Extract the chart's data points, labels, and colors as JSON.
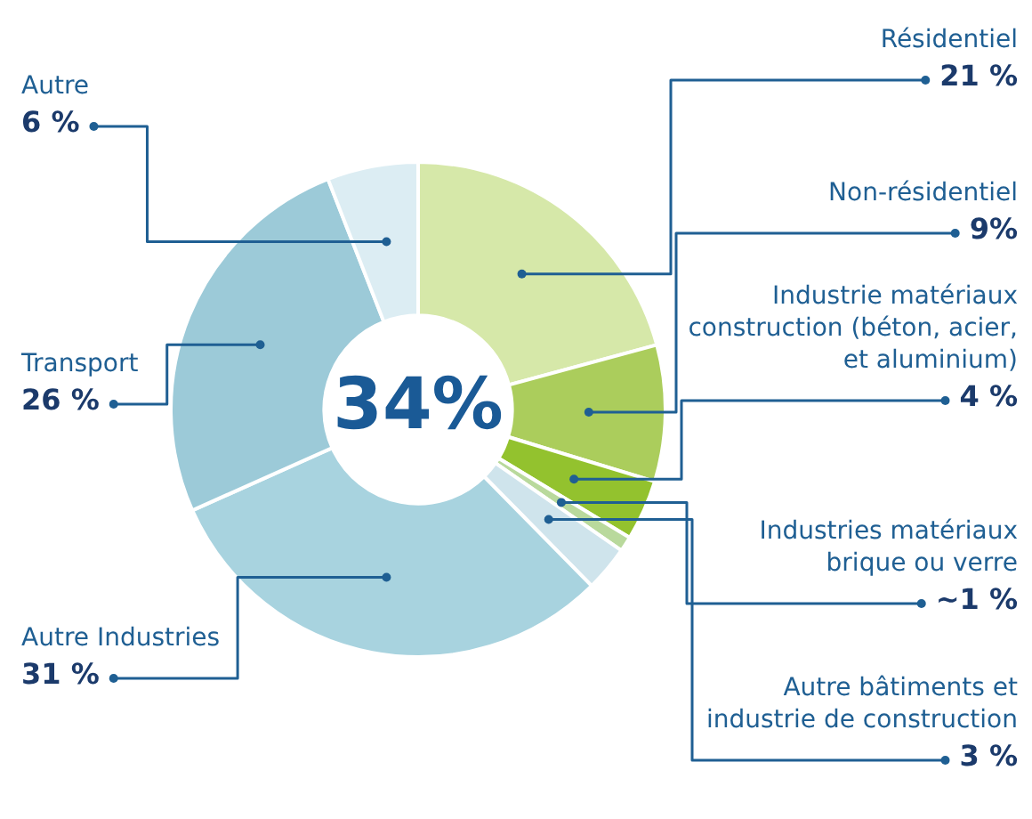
{
  "chart_data": {
    "type": "donut",
    "categories": [
      "Résidentiel",
      "Non-résidentiel",
      "Industrie matériaux construction (béton, acier, et aluminium)",
      "Industries matériaux brique ou verre",
      "Autre bâtiments et industrie de construction",
      "Autre Industries",
      "Transport",
      "Autre"
    ],
    "values": [
      21,
      9,
      4,
      1,
      3,
      31,
      26,
      6
    ],
    "value_labels": [
      "21 %",
      "9%",
      "4 %",
      "~1 %",
      "3 %",
      "31 %",
      "26 %",
      "6 %"
    ],
    "colors": [
      "#d6e8a9",
      "#abcd5c",
      "#93c22e",
      "#b9d99c",
      "#cfe4ec",
      "#a8d3df",
      "#9ccad8",
      "#dcedf3"
    ],
    "annotations": [
      "34%"
    ],
    "legend": false
  }
}
